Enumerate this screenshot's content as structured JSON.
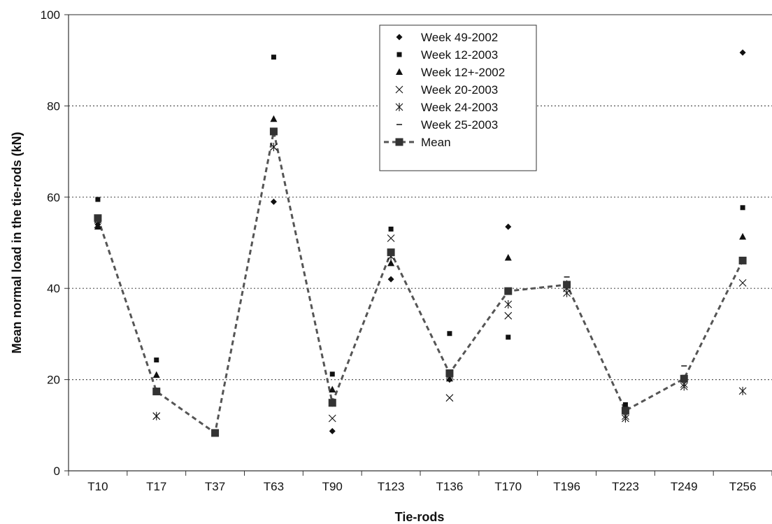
{
  "chart_data": {
    "type": "scatter",
    "title": "",
    "xlabel": "Tie-rods",
    "ylabel": "Mean normal load in the tie-rods (kN)",
    "categories": [
      "T10",
      "T17",
      "T37",
      "T63",
      "T90",
      "T123",
      "T136",
      "T170",
      "T196",
      "T223",
      "T249",
      "T256"
    ],
    "ylim": [
      0,
      100
    ],
    "yticks": [
      0,
      20,
      40,
      60,
      80,
      100
    ],
    "grid": "horizontal dotted",
    "legend_position": "top-center",
    "series": [
      {
        "name": "Week 49-2002",
        "marker": "diamond",
        "values": [
          54,
          17.5,
          null,
          59,
          8.7,
          42,
          20,
          53.5,
          41,
          13,
          20,
          91.7
        ]
      },
      {
        "name": "Week 12-2003",
        "marker": "square-small",
        "values": [
          59.5,
          24.3,
          null,
          90.7,
          21.2,
          53,
          30.1,
          29.3,
          41,
          14.5,
          20.5,
          57.7
        ]
      },
      {
        "name": "Week 12+-2002",
        "marker": "triangle",
        "values": [
          53.5,
          21,
          null,
          77.1,
          17.8,
          45.5,
          20.2,
          46.7,
          41,
          13.5,
          20,
          51.3
        ]
      },
      {
        "name": "Week 20-2003",
        "marker": "x",
        "values": [
          55,
          12,
          null,
          71,
          11.5,
          51,
          16,
          34,
          40,
          12,
          19,
          41.2
        ]
      },
      {
        "name": "Week 24-2003",
        "marker": "asterisk",
        "values": [
          54,
          12,
          null,
          71,
          15,
          47,
          21,
          36.5,
          39,
          11.5,
          18.5,
          17.5
        ]
      },
      {
        "name": "Week 25-2003",
        "marker": "dash",
        "values": [
          55,
          17,
          null,
          75,
          15,
          48,
          22,
          39,
          42.5,
          13,
          23,
          46
        ]
      },
      {
        "name": "Mean",
        "marker": "square-dashed-line",
        "values": [
          55.4,
          17.4,
          8.3,
          74.4,
          14.9,
          47.9,
          21.4,
          39.4,
          40.8,
          13.2,
          20.2,
          46.1
        ]
      }
    ]
  }
}
